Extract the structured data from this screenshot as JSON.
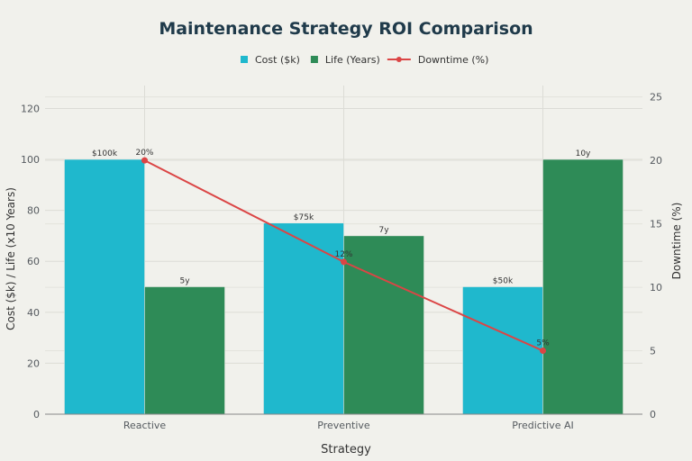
{
  "chart_data": {
    "type": "bar",
    "title": "Maintenance Strategy ROI Comparison",
    "xlabel": "Strategy",
    "ylabel": "Cost ($k) / Life (x10 Years)",
    "y2label": "Downtime (%)",
    "categories": [
      "Reactive",
      "Preventive",
      "Predictive AI"
    ],
    "ylim": [
      0,
      129
    ],
    "y2lim": [
      0,
      25.9
    ],
    "yticks": [
      0,
      20,
      40,
      60,
      80,
      100,
      120
    ],
    "y2ticks": [
      0,
      5,
      10,
      15,
      20,
      25
    ],
    "series": [
      {
        "name": "Cost ($k)",
        "type": "bar",
        "axis": "left",
        "color": "#1fb8cd",
        "values": [
          100,
          75,
          50
        ],
        "labels": [
          "$100k",
          "$75k",
          "$50k"
        ]
      },
      {
        "name": "Life (Years)",
        "type": "bar",
        "axis": "left",
        "color": "#2e8b57",
        "values": [
          50,
          70,
          100
        ],
        "labels": [
          "5y",
          "7y",
          "10y"
        ]
      },
      {
        "name": "Downtime (%)",
        "type": "line",
        "axis": "right",
        "color": "#db4545",
        "values": [
          20,
          12,
          5
        ],
        "labels": [
          "20%",
          "12%",
          "5%"
        ]
      }
    ],
    "legend": "top-center",
    "grid": true
  }
}
